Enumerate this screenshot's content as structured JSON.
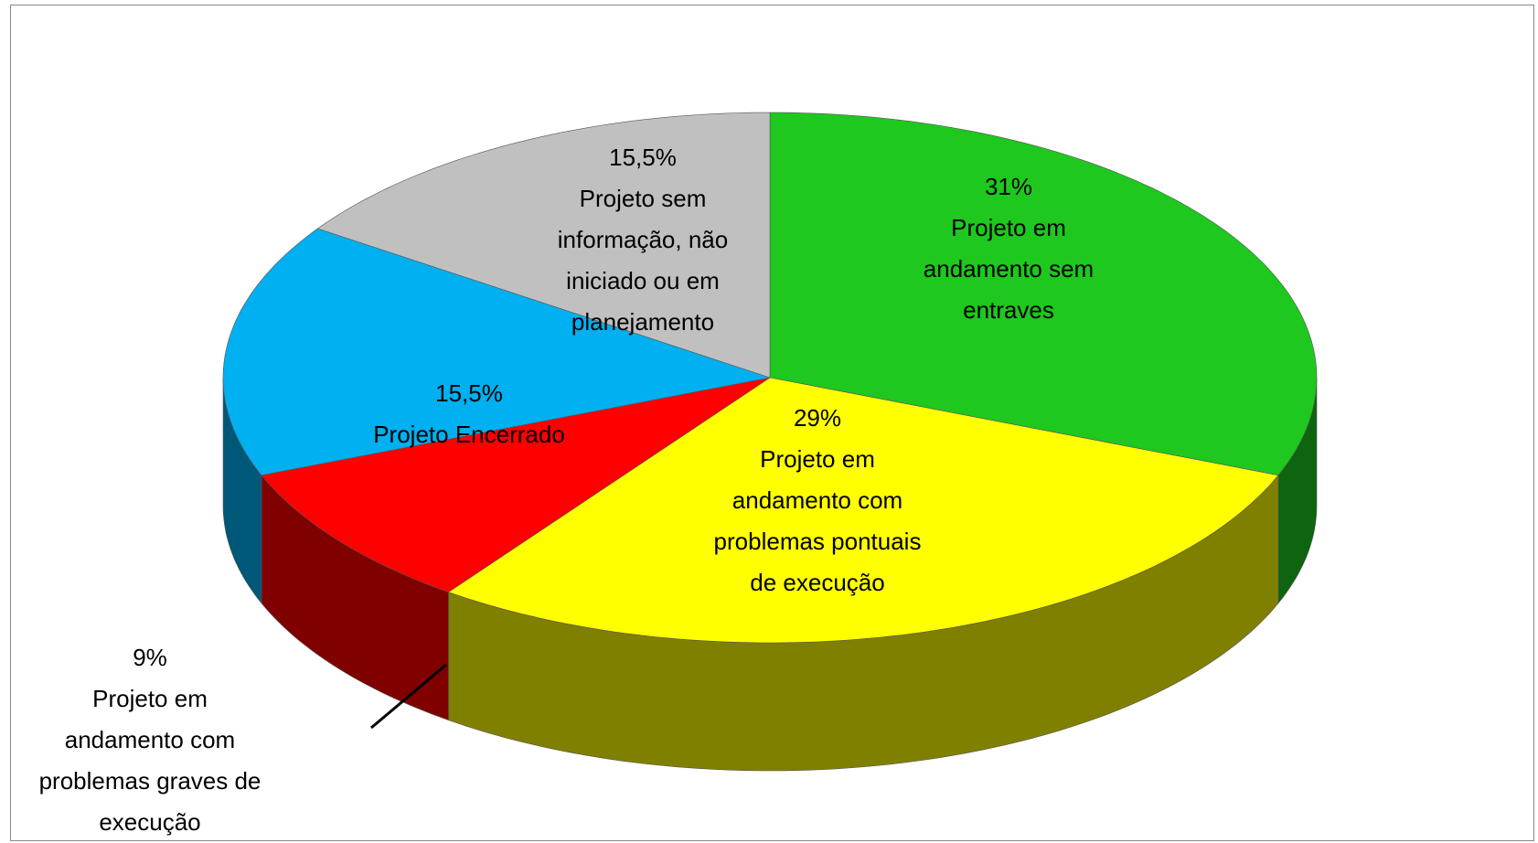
{
  "chart_data": {
    "type": "pie3d",
    "categories": [
      "Projeto em\nandamento sem\nentraves",
      "Projeto em\nandamento com\nproblemas pontuais\nde execução",
      "Projeto em\nandamento com\nproblemas graves de\nexecução",
      "Projeto Encerrado",
      "Projeto sem\ninformação, não\niniciado ou em\nplanejamento"
    ],
    "values": [
      31,
      29,
      9,
      15.5,
      15.5
    ],
    "value_labels": [
      "31%",
      "29%",
      "9%",
      "15,5%",
      "15,5%"
    ],
    "colors": [
      "#1ec81e",
      "#ffff00",
      "#ff0000",
      "#00b0f0",
      "#c0c0c0"
    ]
  }
}
